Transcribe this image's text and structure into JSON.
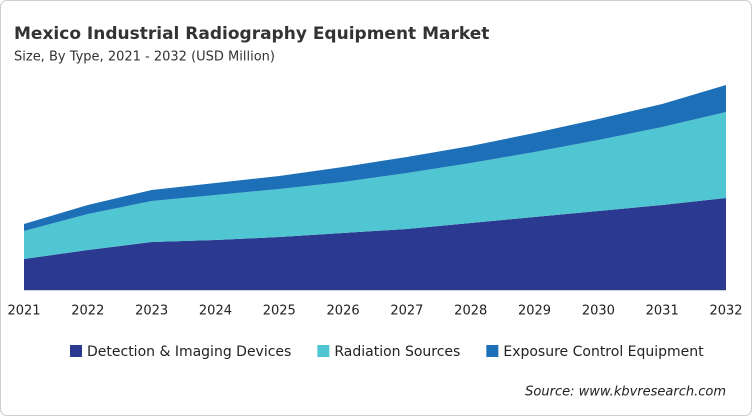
{
  "chart_data": {
    "type": "stacked-area",
    "title": "Mexico Industrial Radiography Equipment Market",
    "subtitle": "Size, By Type, 2021 - 2032 (USD Million)",
    "source": "Source: www.kbvresearch.com",
    "categories": [
      "2021",
      "2022",
      "2023",
      "2024",
      "2025",
      "2026",
      "2027",
      "2028",
      "2029",
      "2030",
      "2031",
      "2032"
    ],
    "series": [
      {
        "name": "Detection & Imaging Devices",
        "color": "#2b3990",
        "values": [
          31,
          40,
          48,
          50,
          53,
          57,
          61,
          67,
          73,
          79,
          85,
          92
        ]
      },
      {
        "name": "Radiation Sources",
        "color": "#4fc6d1",
        "values": [
          28,
          36,
          41,
          45,
          48,
          51,
          56,
          60,
          65,
          71,
          78,
          86
        ]
      },
      {
        "name": "Exposure Control Equipment",
        "color": "#1d70b7",
        "values": [
          7,
          9,
          11,
          12,
          13,
          15,
          16,
          17,
          19,
          21,
          23,
          27
        ]
      }
    ],
    "ylim": [
      0,
      210
    ]
  }
}
